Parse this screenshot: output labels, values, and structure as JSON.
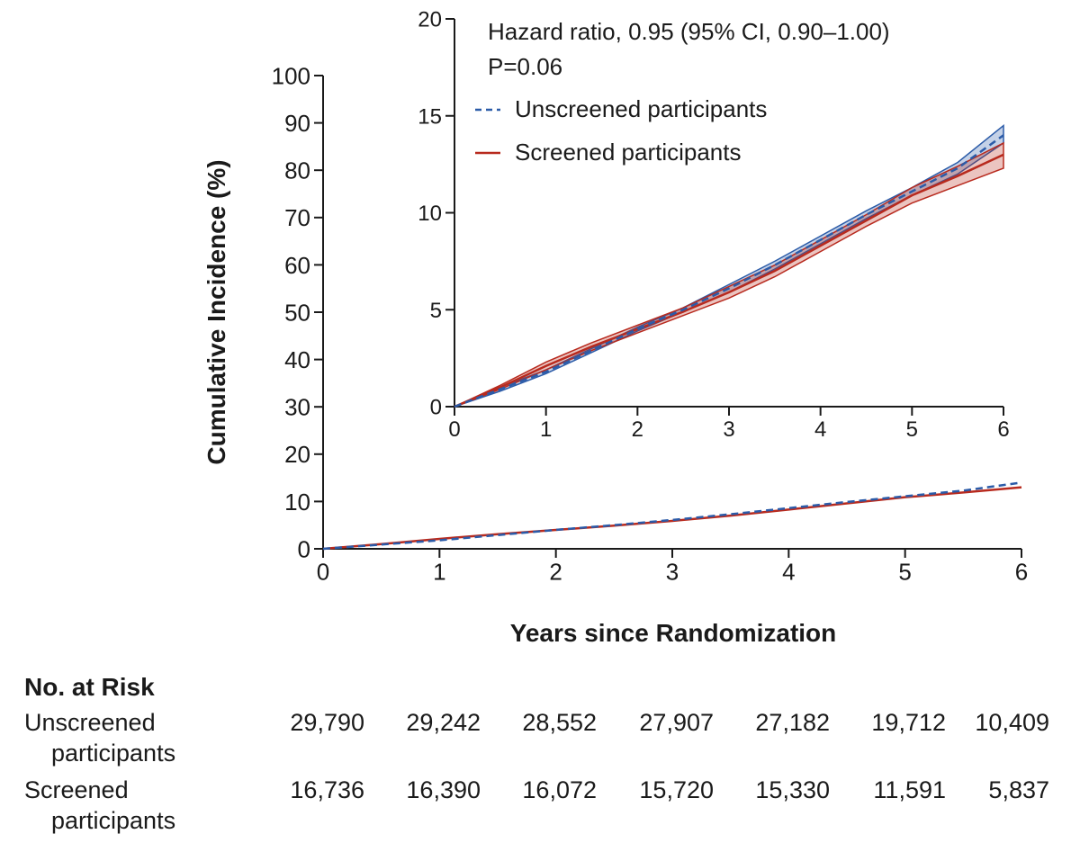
{
  "chart_data": [
    {
      "type": "line",
      "panel": "main",
      "title": "",
      "xlabel": "Years since Randomization",
      "ylabel": "Cumulative Incidence (%)",
      "xlim": [
        0,
        6
      ],
      "ylim": [
        0,
        100
      ],
      "xticks": [
        0,
        1,
        2,
        3,
        4,
        5,
        6
      ],
      "yticks": [
        0,
        10,
        20,
        30,
        40,
        50,
        60,
        70,
        80,
        90,
        100
      ],
      "x": [
        0,
        0.5,
        1,
        1.5,
        2,
        2.5,
        3,
        3.5,
        4,
        4.5,
        5,
        5.5,
        6
      ],
      "series": [
        {
          "name": "Unscreened participants",
          "color": "#2b5ba8",
          "dash": true,
          "values": [
            0,
            0.9,
            1.8,
            2.9,
            4.0,
            5.0,
            6.1,
            7.3,
            8.6,
            9.9,
            11.1,
            12.3,
            14.0
          ]
        },
        {
          "name": "Screened participants",
          "color": "#b82a1e",
          "dash": false,
          "values": [
            0,
            1.0,
            2.1,
            3.1,
            4.0,
            4.9,
            5.9,
            7.0,
            8.3,
            9.6,
            10.9,
            11.9,
            13.0
          ]
        }
      ]
    },
    {
      "type": "line",
      "panel": "inset",
      "xlim": [
        0,
        6
      ],
      "ylim": [
        0,
        20
      ],
      "xticks": [
        0,
        1,
        2,
        3,
        4,
        5,
        6
      ],
      "yticks": [
        0,
        5,
        10,
        15,
        20
      ],
      "x": [
        0,
        0.5,
        1,
        1.5,
        2,
        2.5,
        3,
        3.5,
        4,
        4.5,
        5,
        5.5,
        6
      ],
      "annotations": [
        "Hazard ratio, 0.95 (95% CI, 0.90–1.00)",
        "P=0.06"
      ],
      "legend": "top-left",
      "series": [
        {
          "name": "Unscreened participants",
          "color": "#2b5ba8",
          "dash": true,
          "values": [
            0,
            0.9,
            1.8,
            2.9,
            4.0,
            5.0,
            6.1,
            7.3,
            8.6,
            9.9,
            11.1,
            12.3,
            14.0
          ],
          "ci_lower": [
            0,
            0.8,
            1.7,
            2.8,
            3.9,
            4.9,
            5.9,
            7.1,
            8.4,
            9.7,
            10.9,
            12.0,
            13.6
          ],
          "ci_upper": [
            0,
            1.0,
            1.9,
            3.0,
            4.1,
            5.1,
            6.3,
            7.5,
            8.8,
            10.1,
            11.3,
            12.6,
            14.5
          ]
        },
        {
          "name": "Screened participants",
          "color": "#b82a1e",
          "dash": false,
          "values": [
            0,
            1.0,
            2.1,
            3.1,
            4.0,
            4.9,
            5.9,
            7.0,
            8.3,
            9.6,
            10.9,
            11.9,
            13.0
          ],
          "ci_lower": [
            0,
            0.9,
            1.9,
            2.9,
            3.8,
            4.7,
            5.6,
            6.7,
            8.0,
            9.3,
            10.5,
            11.4,
            12.3
          ],
          "ci_upper": [
            0,
            1.1,
            2.3,
            3.3,
            4.2,
            5.1,
            6.2,
            7.3,
            8.6,
            9.9,
            11.3,
            12.4,
            13.6
          ]
        }
      ]
    }
  ],
  "risk_table": {
    "title": "No. at Risk",
    "rows": [
      {
        "label_line1": "Unscreened",
        "label_line2": "participants",
        "values": [
          "29,790",
          "29,242",
          "28,552",
          "27,907",
          "27,182",
          "19,712",
          "10,409"
        ]
      },
      {
        "label_line1": "Screened",
        "label_line2": "participants",
        "values": [
          "16,736",
          "16,390",
          "16,072",
          "15,720",
          "15,330",
          "11,591",
          "5,837"
        ]
      }
    ]
  }
}
